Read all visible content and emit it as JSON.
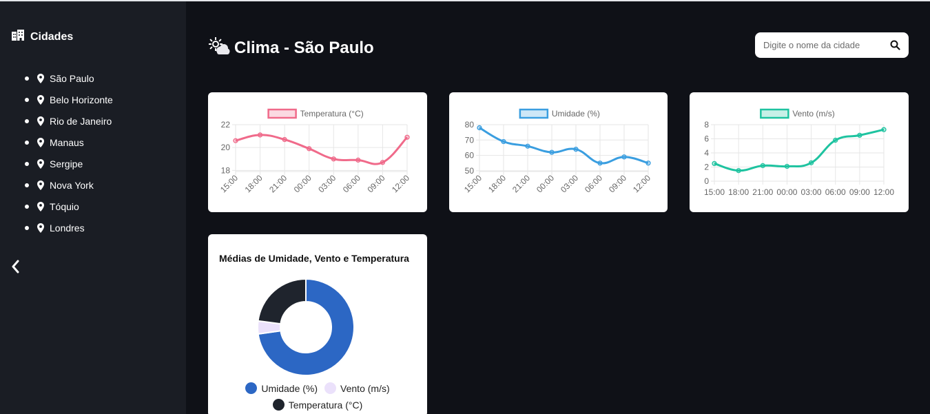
{
  "sidebar": {
    "title": "Cidades",
    "cities": [
      "São Paulo",
      "Belo Horizonte",
      "Rio de Janeiro",
      "Manaus",
      "Sergipe",
      "Nova York",
      "Tóquio",
      "Londres"
    ]
  },
  "header": {
    "title": "Clima - São Paulo"
  },
  "search": {
    "placeholder": "Digite o nome da cidade"
  },
  "colors": {
    "temperature": "#f06a8a",
    "humidity": "#3a9ee0",
    "wind": "#1ec3a0",
    "donut_humidity": "#2c67c4",
    "donut_wind": "#ebe1fb",
    "donut_temperature": "#1f242d"
  },
  "chart_data": [
    {
      "type": "line",
      "x": [
        "15:00",
        "18:00",
        "21:00",
        "00:00",
        "03:00",
        "06:00",
        "09:00",
        "12:00"
      ],
      "series": [
        {
          "name": "Temperatura (°C)",
          "values": [
            20.6,
            21.1,
            20.7,
            19.9,
            19.0,
            18.9,
            18.7,
            20.9
          ]
        }
      ],
      "ylim": [
        17.9,
        22
      ],
      "yticks": [
        18,
        20,
        22
      ],
      "rotate_labels": true,
      "grid": true,
      "legend": "top"
    },
    {
      "type": "line",
      "x": [
        "15:00",
        "18:00",
        "21:00",
        "00:00",
        "03:00",
        "06:00",
        "09:00",
        "12:00"
      ],
      "series": [
        {
          "name": "Umidade (%)",
          "values": [
            78,
            69,
            66,
            62,
            64,
            55,
            59,
            55
          ]
        }
      ],
      "ylim": [
        49.5,
        80
      ],
      "yticks": [
        50,
        60,
        70,
        80
      ],
      "rotate_labels": true,
      "grid": true,
      "legend": "top"
    },
    {
      "type": "line",
      "x": [
        "15:00",
        "18:00",
        "21:00",
        "00:00",
        "03:00",
        "06:00",
        "09:00",
        "12:00"
      ],
      "series": [
        {
          "name": "Vento (m/s)",
          "values": [
            2.5,
            1.5,
            2.2,
            2.1,
            2.6,
            5.8,
            6.5,
            7.3
          ]
        }
      ],
      "ylim": [
        0,
        8
      ],
      "yticks": [
        0,
        2,
        4,
        6,
        8
      ],
      "rotate_labels": false,
      "grid": true,
      "legend": "top"
    },
    {
      "type": "pie",
      "title": "Médias de Umidade, Vento e Temperatura",
      "categories": [
        "Umidade (%)",
        "Vento (m/s)",
        "Temperatura (°C)"
      ],
      "values": [
        63.5,
        3.8,
        20.0
      ],
      "legend": "bottom"
    }
  ]
}
